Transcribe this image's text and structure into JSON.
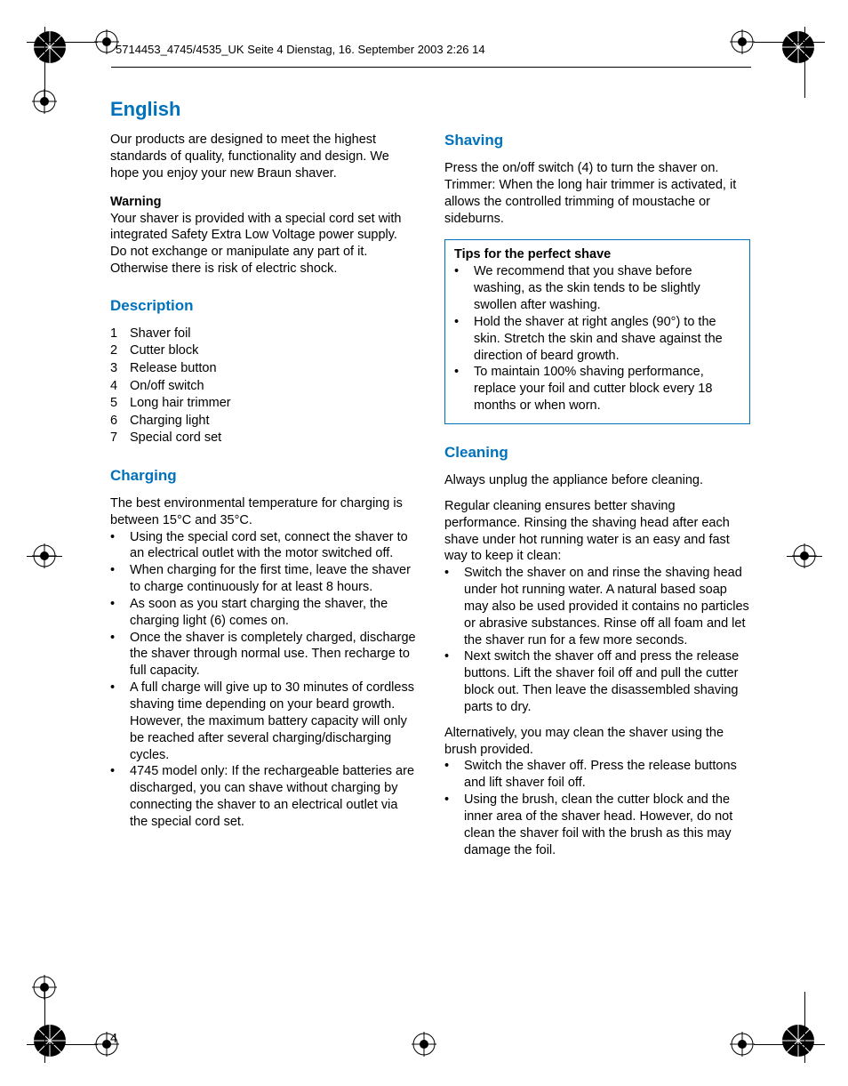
{
  "header": "5714453_4745/4535_UK  Seite 4  Dienstag, 16. September 2003  2:26 14",
  "pageNumber": "4",
  "title": "English",
  "intro": "Our products are designed to meet the highest standards of quality, functionality and design. We hope you enjoy your new Braun shaver.",
  "warningLabel": "Warning",
  "warningText": "Your shaver is provided with a special cord set with integrated Safety Extra Low Voltage power supply. Do not exchange or manipulate any part of it. Otherwise there is risk of electric shock.",
  "sections": {
    "description": {
      "heading": "Description",
      "items": [
        {
          "n": "1",
          "t": "Shaver foil"
        },
        {
          "n": "2",
          "t": "Cutter block"
        },
        {
          "n": "3",
          "t": "Release button"
        },
        {
          "n": "4",
          "t": "On/off switch"
        },
        {
          "n": "5",
          "t": "Long hair trimmer"
        },
        {
          "n": "6",
          "t": "Charging light"
        },
        {
          "n": "7",
          "t": "Special cord set"
        }
      ]
    },
    "charging": {
      "heading": "Charging",
      "intro": "The best environmental temperature for charging is between 15°C and 35°C.",
      "bullets": [
        "Using the special cord set, connect the shaver to an electrical outlet with the motor switched off.",
        "When charging for the first time, leave the shaver to charge continuously for at least 8 hours.",
        "As soon as you start charging the shaver, the charging light (6) comes on.",
        "Once the shaver is completely charged, discharge the shaver through normal use. Then recharge to full capacity.",
        "A full charge will give up to 30 minutes of cordless shaving time depending on your beard growth. However, the maximum battery capacity will only be reached after several charging/discharging cycles.",
        "4745 model only: If the rechargeable batteries are discharged, you can shave without charging by connecting the shaver to an electrical outlet via the special cord set."
      ]
    },
    "shaving": {
      "heading": "Shaving",
      "p1": "Press the on/off switch (4) to turn the shaver on.",
      "p2": "Trimmer: When the long hair trimmer is activated, it allows the controlled trimming of moustache or sideburns.",
      "tipsTitle": "Tips for the perfect shave",
      "tips": [
        "We recommend that you shave before washing, as the skin tends to be slightly swollen after washing.",
        "Hold the shaver at right angles (90°) to the skin. Stretch the skin and shave against the direction of beard growth.",
        "To maintain 100% shaving performance, replace your foil and cutter block every 18 months or when worn."
      ]
    },
    "cleaning": {
      "heading": "Cleaning",
      "p1": "Always unplug the appliance before cleaning.",
      "p2": "Regular cleaning ensures better shaving performance. Rinsing the shaving head after each shave under hot running water is an easy and fast way to keep it clean:",
      "bullets1": [
        "Switch the shaver on and rinse the shaving head under hot running water. A natural based soap may also be used provided it contains no particles or abrasive substances. Rinse off all foam and let the shaver run for a few more seconds.",
        "Next switch the shaver off and press the release buttons. Lift the shaver foil off and pull the cutter block out. Then leave the disassembled shaving parts to dry."
      ],
      "p3": "Alternatively, you may clean the shaver using the brush provided.",
      "bullets2": [
        "Switch the shaver off. Press the release buttons and lift shaver foil off.",
        "Using the brush, clean the cutter block and the inner area of the shaver head. However, do not clean the shaver foil with the brush as this may damage the foil."
      ]
    }
  },
  "colors": {
    "accent": "#0072bc",
    "text": "#000000",
    "bg": "#ffffff"
  }
}
